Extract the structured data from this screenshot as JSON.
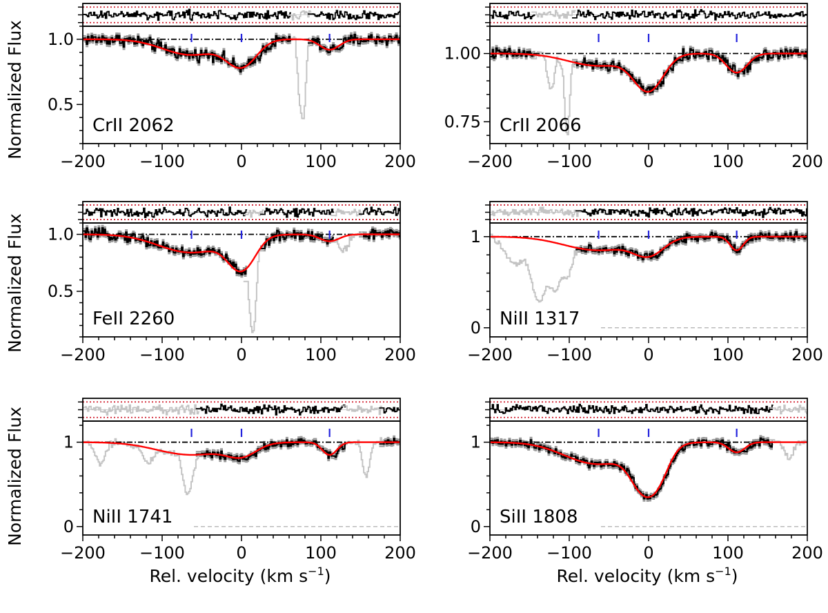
{
  "figure": {
    "ylabel": "Normalized Flux",
    "xlabel_main": "Rel. velocity  (km s",
    "xlabel_sup": "−1",
    "xlabel_close": ")",
    "colors": {
      "data": "#000000",
      "error": "#9a9a9a",
      "masked": "#c4c4c4",
      "model": "#ff0000",
      "residual_band": "#d01c2c",
      "continuum": "#000000",
      "marker": "#2222dd"
    }
  },
  "chart_data": [
    {
      "type": "line",
      "name": "crii-2062",
      "label": "CrII 2062",
      "xlim": [
        -200,
        200
      ],
      "ylim": [
        0.2,
        1.1
      ],
      "xticks": [
        -200,
        -100,
        0,
        100,
        200
      ],
      "xtick_labels": [
        "−200",
        "−100",
        "0",
        "100",
        "200"
      ],
      "yticks": [
        0.5,
        1.0
      ],
      "ytick_labels": [
        "0.5",
        "1.0"
      ],
      "component_markers": [
        -63,
        0,
        111
      ],
      "model": {
        "depths": [
          0.12,
          0.2,
          0.08
        ],
        "widths": [
          35,
          18,
          12
        ]
      },
      "masked_regions": [
        {
          "x0": 60,
          "x1": 85,
          "absorption": [
            {
              "x": 75,
              "depth": 0.62,
              "width": 3
            },
            {
              "x": 70,
              "depth": 0.25,
              "width": 2
            }
          ]
        }
      ],
      "show_zero_line": false
    },
    {
      "type": "line",
      "name": "crii-2066",
      "label": "CrII 2066",
      "xlim": [
        -200,
        200
      ],
      "ylim": [
        0.67,
        1.1
      ],
      "xticks": [
        -200,
        -100,
        0,
        100,
        200
      ],
      "xtick_labels": [
        "−200",
        "−100",
        "0",
        "100",
        "200"
      ],
      "yticks": [
        0.75,
        1.0
      ],
      "ytick_labels": [
        "0.75",
        "1.00"
      ],
      "component_markers": [
        -63,
        0,
        111
      ],
      "model": {
        "depths": [
          0.045,
          0.13,
          0.07
        ],
        "widths": [
          38,
          18,
          13
        ]
      },
      "masked_regions": [
        {
          "x0": -145,
          "x1": -95,
          "absorption": [
            {
              "x": -105,
              "depth": 0.28,
              "width": 3
            },
            {
              "x": -125,
              "depth": 0.12,
              "width": 4
            }
          ]
        }
      ],
      "show_zero_line": false
    },
    {
      "type": "line",
      "name": "feii-2260",
      "label": "FeII 2260",
      "xlim": [
        -200,
        200
      ],
      "ylim": [
        0.1,
        1.1
      ],
      "xticks": [
        -200,
        -100,
        0,
        100,
        200
      ],
      "xtick_labels": [
        "−200",
        "−100",
        "0",
        "100",
        "200"
      ],
      "yticks": [
        0.5,
        1.0
      ],
      "ytick_labels": [
        "0.5",
        "1.0"
      ],
      "component_markers": [
        -63,
        0,
        111
      ],
      "model": {
        "depths": [
          0.16,
          0.29,
          0.06
        ],
        "widths": [
          40,
          16,
          12
        ]
      },
      "masked_regions": [
        {
          "x0": 5,
          "x1": 25,
          "absorption": [
            {
              "x": 12,
              "depth": 0.82,
              "width": 3
            }
          ]
        },
        {
          "x0": 115,
          "x1": 150,
          "absorption": [
            {
              "x": 128,
              "depth": 0.12,
              "width": 5
            }
          ]
        }
      ],
      "show_zero_line": false
    },
    {
      "type": "line",
      "name": "niii-1317",
      "label": "NiII 1317",
      "xlim": [
        -200,
        200
      ],
      "ylim": [
        -0.1,
        1.15
      ],
      "xticks": [
        -200,
        -100,
        0,
        100,
        200
      ],
      "xtick_labels": [
        "−200",
        "−100",
        "0",
        "100",
        "200"
      ],
      "yticks": [
        0,
        1
      ],
      "ytick_labels": [
        "0",
        "1"
      ],
      "component_markers": [
        -63,
        0,
        111
      ],
      "model": {
        "depths": [
          0.15,
          0.18,
          0.15
        ],
        "widths": [
          42,
          18,
          8
        ]
      },
      "masked_regions": [
        {
          "x0": -200,
          "x1": -90,
          "absorption": [
            {
              "x": -170,
              "depth": 0.3,
              "width": 12
            },
            {
              "x": -140,
              "depth": 0.7,
              "width": 8
            },
            {
              "x": -120,
              "depth": 0.55,
              "width": 6
            },
            {
              "x": -105,
              "depth": 0.4,
              "width": 5
            }
          ]
        }
      ],
      "show_zero_line": true
    },
    {
      "type": "line",
      "name": "niii-1741",
      "label": "NiII 1741",
      "xlim": [
        -200,
        200
      ],
      "ylim": [
        -0.1,
        1.25
      ],
      "xticks": [
        -200,
        -100,
        0,
        100,
        200
      ],
      "xtick_labels": [
        "−200",
        "−100",
        "0",
        "100",
        "200"
      ],
      "yticks": [
        0,
        1
      ],
      "ytick_labels": [
        "0",
        "1"
      ],
      "component_markers": [
        -63,
        0,
        111
      ],
      "model": {
        "depths": [
          0.15,
          0.14,
          0.15
        ],
        "widths": [
          42,
          18,
          9
        ]
      },
      "masked_regions": [
        {
          "x0": -200,
          "x1": -55,
          "absorption": [
            {
              "x": -180,
              "depth": 0.25,
              "width": 6
            },
            {
              "x": -120,
              "depth": 0.2,
              "width": 6
            },
            {
              "x": -70,
              "depth": 0.55,
              "width": 5
            }
          ]
        },
        {
          "x0": 130,
          "x1": 175,
          "absorption": [
            {
              "x": 155,
              "depth": 0.4,
              "width": 4
            }
          ]
        }
      ],
      "show_zero_line": true
    },
    {
      "type": "line",
      "name": "sii-1808",
      "label": "SiII 1808",
      "xlim": [
        -200,
        200
      ],
      "ylim": [
        -0.1,
        1.25
      ],
      "xticks": [
        -200,
        -100,
        0,
        100,
        200
      ],
      "xtick_labels": [
        "−200",
        "−100",
        "0",
        "100",
        "200"
      ],
      "yticks": [
        0,
        1
      ],
      "ytick_labels": [
        "0",
        "1"
      ],
      "component_markers": [
        -63,
        0,
        111
      ],
      "model": {
        "depths": [
          0.26,
          0.62,
          0.12
        ],
        "widths": [
          40,
          17,
          10
        ]
      },
      "masked_regions": [
        {
          "x0": 155,
          "x1": 200,
          "absorption": [
            {
              "x": 175,
              "depth": 0.2,
              "width": 5
            }
          ]
        }
      ],
      "show_zero_line": true
    }
  ]
}
